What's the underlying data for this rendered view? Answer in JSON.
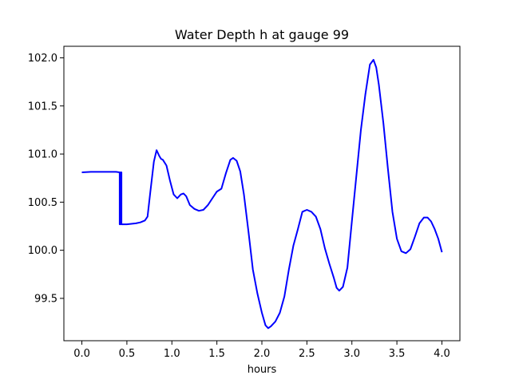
{
  "chart_data": {
    "type": "line",
    "title": "Water Depth h at gauge 99",
    "xlabel": "hours",
    "ylabel": "",
    "xlim": [
      -0.2,
      4.2
    ],
    "ylim": [
      99.06,
      102.12
    ],
    "xticks": [
      "0.0",
      "0.5",
      "1.0",
      "1.5",
      "2.0",
      "2.5",
      "3.0",
      "3.5",
      "4.0"
    ],
    "xtick_values": [
      0.0,
      0.5,
      1.0,
      1.5,
      2.0,
      2.5,
      3.0,
      3.5,
      4.0
    ],
    "yticks": [
      "99.5",
      "100.0",
      "100.5",
      "101.0",
      "101.5",
      "102.0"
    ],
    "ytick_values": [
      99.5,
      100.0,
      100.5,
      101.0,
      101.5,
      102.0
    ],
    "grid": false,
    "series_color": "#0000ff",
    "series": [
      {
        "x": [
          0.0,
          0.1,
          0.2,
          0.3,
          0.38,
          0.42,
          0.42,
          0.43,
          0.43,
          0.44,
          0.44,
          0.45,
          0.5,
          0.6,
          0.65,
          0.7,
          0.73,
          0.76,
          0.8,
          0.83,
          0.86,
          0.88,
          0.9,
          0.94,
          0.98,
          1.02,
          1.06,
          1.1,
          1.13,
          1.16,
          1.2,
          1.25,
          1.3,
          1.35,
          1.4,
          1.45,
          1.5,
          1.55,
          1.6,
          1.65,
          1.68,
          1.72,
          1.76,
          1.8,
          1.85,
          1.9,
          1.95,
          2.0,
          2.04,
          2.07,
          2.1,
          2.15,
          2.2,
          2.25,
          2.3,
          2.35,
          2.4,
          2.45,
          2.5,
          2.55,
          2.6,
          2.65,
          2.7,
          2.75,
          2.8,
          2.83,
          2.86,
          2.9,
          2.95,
          3.0,
          3.05,
          3.1,
          3.15,
          3.2,
          3.24,
          3.27,
          3.3,
          3.35,
          3.4,
          3.45,
          3.5,
          3.55,
          3.6,
          3.65,
          3.7,
          3.75,
          3.8,
          3.84,
          3.88,
          3.92,
          3.96,
          4.0
        ],
        "y": [
          100.81,
          100.815,
          100.815,
          100.815,
          100.815,
          100.81,
          100.27,
          100.27,
          100.81,
          100.81,
          100.27,
          100.27,
          100.27,
          100.28,
          100.29,
          100.31,
          100.35,
          100.6,
          100.92,
          101.04,
          100.98,
          100.95,
          100.94,
          100.88,
          100.72,
          100.58,
          100.54,
          100.58,
          100.59,
          100.56,
          100.47,
          100.43,
          100.41,
          100.42,
          100.47,
          100.54,
          100.61,
          100.64,
          100.8,
          100.94,
          100.96,
          100.93,
          100.82,
          100.58,
          100.2,
          99.8,
          99.55,
          99.35,
          99.22,
          99.19,
          99.21,
          99.26,
          99.35,
          99.52,
          99.8,
          100.05,
          100.22,
          100.4,
          100.42,
          100.4,
          100.35,
          100.22,
          100.02,
          99.86,
          99.71,
          99.61,
          99.58,
          99.62,
          99.82,
          100.3,
          100.78,
          101.25,
          101.62,
          101.93,
          101.98,
          101.9,
          101.72,
          101.32,
          100.85,
          100.4,
          100.12,
          99.99,
          99.97,
          100.01,
          100.14,
          100.28,
          100.34,
          100.34,
          100.3,
          100.22,
          100.12,
          99.98
        ]
      }
    ]
  }
}
